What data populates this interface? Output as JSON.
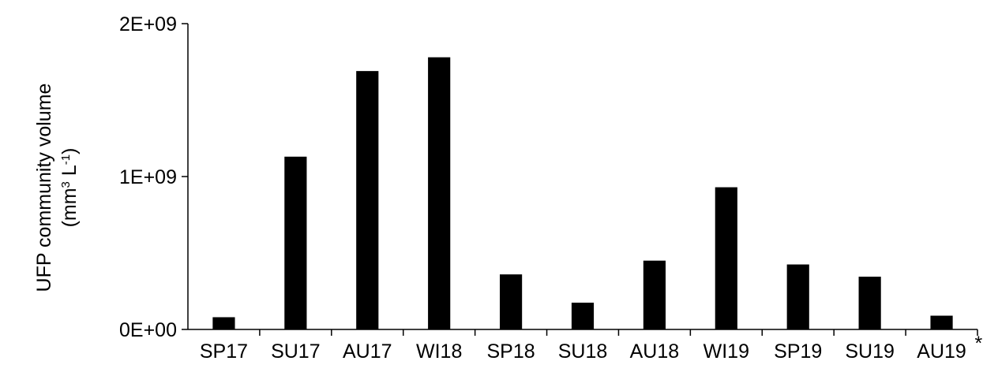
{
  "chart_data": {
    "type": "bar",
    "categories": [
      "SP17",
      "SU17",
      "AU17",
      "WI18",
      "SP18",
      "SU18",
      "AU18",
      "WI19",
      "SP19",
      "SU19",
      "AU19"
    ],
    "values": [
      80000000,
      1130000000,
      1690000000,
      1780000000,
      360000000,
      175000000,
      450000000,
      930000000,
      425000000,
      345000000,
      90000000
    ],
    "ylim": [
      0,
      2000000000
    ],
    "yticks": [
      {
        "value": 0,
        "label": "0E+00"
      },
      {
        "value": 1000000000,
        "label": "1E+09"
      },
      {
        "value": 2000000000,
        "label": "2E+09"
      }
    ],
    "ylabel_line1": "UFP community volume",
    "ylabel_line2": {
      "pre": "(mm",
      "sup1": "3",
      "mid": " L",
      "sup2": "-1",
      "post": ")"
    },
    "annotation": "*",
    "bar_color": "#000000",
    "grid": false,
    "legend": "none"
  }
}
